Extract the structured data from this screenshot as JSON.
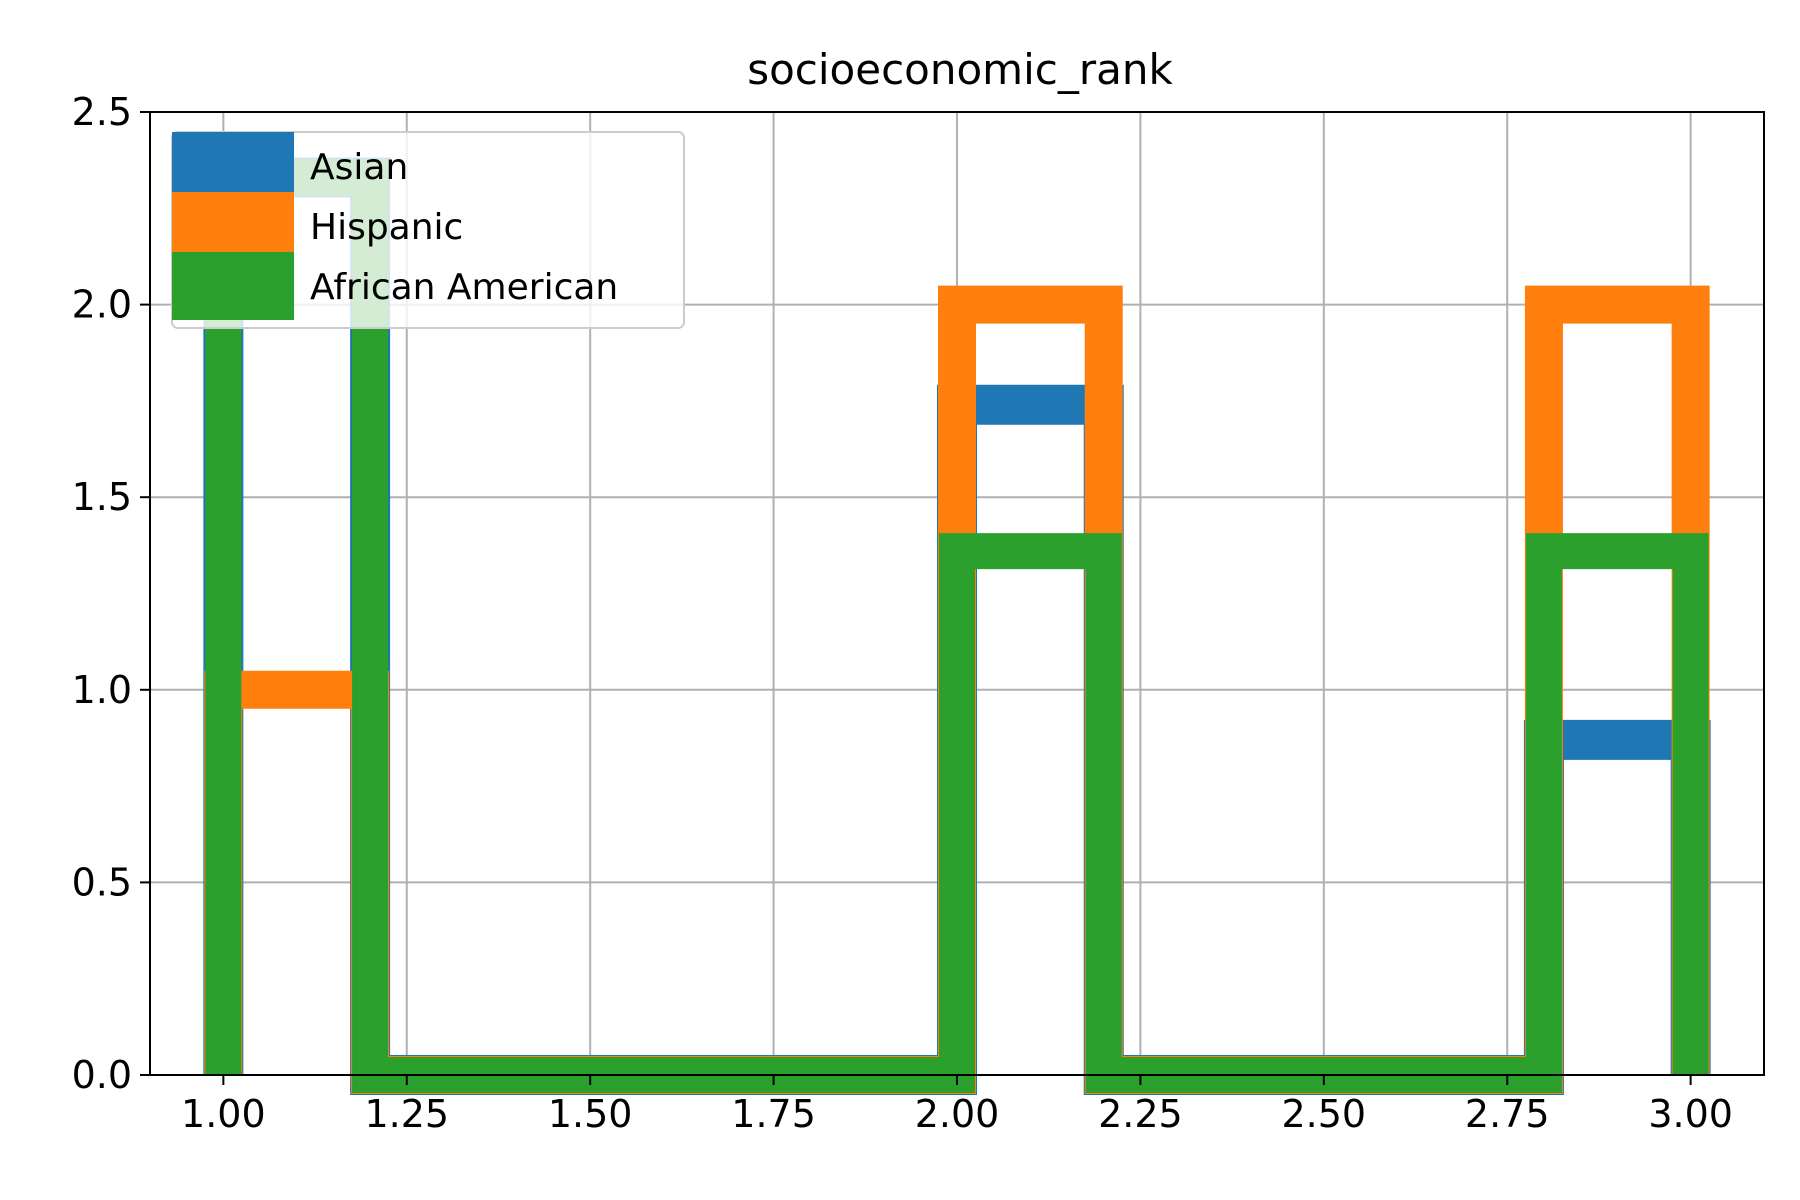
{
  "chart_data": {
    "type": "histogram-step",
    "title": "socioeconomic_rank",
    "xlabel": "",
    "ylabel": "",
    "xlim": [
      0.9,
      3.1
    ],
    "ylim": [
      0,
      2.5
    ],
    "xticks": [
      "1.00",
      "1.25",
      "1.50",
      "1.75",
      "2.00",
      "2.25",
      "2.50",
      "2.75",
      "3.00"
    ],
    "yticks": [
      "0.0",
      "0.5",
      "1.0",
      "1.5",
      "2.0",
      "2.5"
    ],
    "grid": true,
    "legend_position": "upper-left",
    "bin_edges": [
      1.0,
      1.2,
      1.4,
      1.6,
      1.8,
      2.0,
      2.2,
      2.4,
      2.6,
      2.8,
      3.0
    ],
    "series": [
      {
        "name": "Asian",
        "color": "#1f77b4",
        "values": [
          2.33,
          0,
          0,
          0,
          0,
          1.74,
          0,
          0,
          0,
          0.87
        ]
      },
      {
        "name": "Hispanic",
        "color": "#ff7f0e",
        "values": [
          1.0,
          0,
          0,
          0,
          0,
          2.0,
          0,
          0,
          0,
          2.0
        ]
      },
      {
        "name": "African American",
        "color": "#2ca02c",
        "values": [
          2.33,
          0,
          0,
          0,
          0,
          1.36,
          0,
          0,
          0,
          1.36
        ]
      }
    ]
  }
}
